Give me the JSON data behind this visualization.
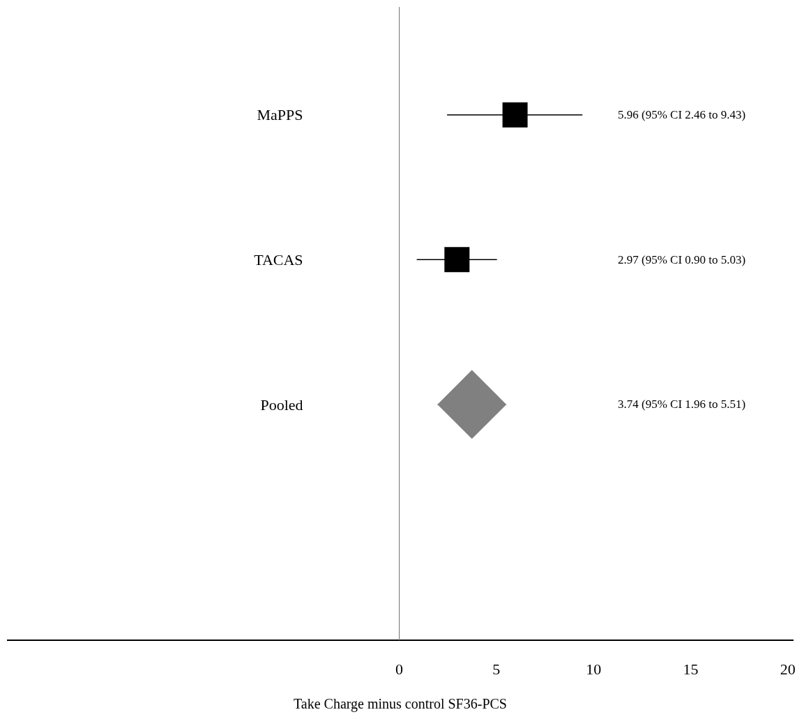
{
  "chart_data": {
    "type": "scatter",
    "orientation": "horizontal",
    "xlabel": "Take Charge minus control SF36-PCS",
    "categories": [
      "MaPPS",
      "TACAS",
      "Pooled"
    ],
    "series": [
      {
        "marker": "square",
        "color": "#000000",
        "values": [
          5.96,
          2.97,
          null
        ],
        "errors": [
          [
            2.46,
            9.43
          ],
          [
            0.9,
            5.03
          ],
          null
        ]
      },
      {
        "marker": "diamond",
        "color": "#808080",
        "values": [
          null,
          null,
          3.74
        ],
        "errors": [
          null,
          null,
          [
            1.96,
            5.51
          ]
        ]
      }
    ],
    "annotations": [
      "5.96 (95% CI 2.46 to 9.43)",
      "2.97 (95% CI 0.90 to 5.03)",
      "3.74 (95% CI 1.96 to 5.51)"
    ],
    "xlim": [
      -20.2,
      20.3
    ],
    "xticks": [
      0,
      5,
      10,
      15,
      20
    ],
    "ref_lines": [
      {
        "axis": "x",
        "value": 0,
        "color": "#808080"
      }
    ]
  }
}
